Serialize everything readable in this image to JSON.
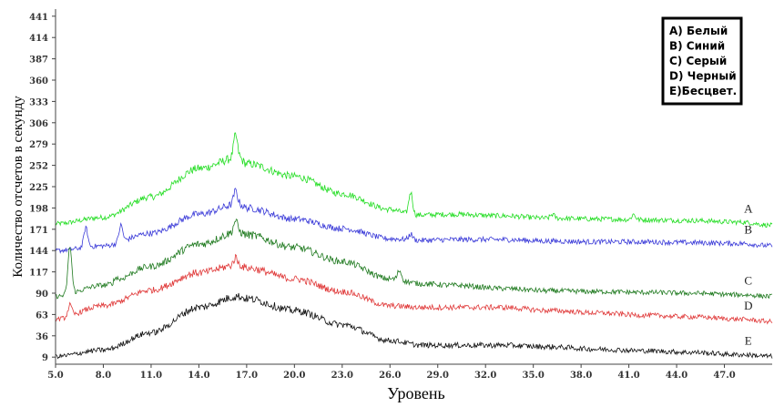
{
  "chart_data": {
    "type": "line",
    "xlabel": "Уровень",
    "ylabel": "Количество отсчетов в секунду",
    "xlim": [
      5.0,
      50.0
    ],
    "ylim": [
      0,
      450
    ],
    "x_ticks": [
      "5.0",
      "8.0",
      "11.0",
      "14.0",
      "17.0",
      "20.0",
      "23.0",
      "26.0",
      "29.0",
      "32.0",
      "35.0",
      "38.0",
      "41.0",
      "44.0",
      "47.0"
    ],
    "y_ticks": [
      "9",
      "36",
      "63",
      "90",
      "117",
      "144",
      "171",
      "198",
      "225",
      "252",
      "279",
      "306",
      "333",
      "360",
      "387",
      "414",
      "441"
    ],
    "legend": {
      "placement": "top-right",
      "entries": [
        "A) Белый",
        "B) Синий",
        "C) Серый",
        "D) Черный",
        "E)Бесцвет."
      ]
    },
    "series": [
      {
        "label": "A",
        "color": "#22dd22",
        "points": [
          [
            5,
            178
          ],
          [
            8,
            186
          ],
          [
            11,
            212
          ],
          [
            14,
            248
          ],
          [
            16.5,
            262
          ],
          [
            17,
            254
          ],
          [
            20,
            238
          ],
          [
            23,
            216
          ],
          [
            26,
            196
          ],
          [
            27.5,
            189
          ],
          [
            30,
            190
          ],
          [
            33,
            188
          ],
          [
            36,
            185
          ],
          [
            39,
            184
          ],
          [
            42,
            183
          ],
          [
            45,
            182
          ],
          [
            48,
            180
          ],
          [
            50,
            176
          ]
        ],
        "peaks": [
          [
            16.3,
            290
          ],
          [
            27.3,
            218
          ],
          [
            36.2,
            190
          ],
          [
            41.3,
            190
          ]
        ]
      },
      {
        "label": "B",
        "color": "#3a3ad8",
        "points": [
          [
            5,
            144
          ],
          [
            8,
            150
          ],
          [
            11,
            166
          ],
          [
            14,
            190
          ],
          [
            16.5,
            203
          ],
          [
            17,
            198
          ],
          [
            20,
            184
          ],
          [
            23,
            172
          ],
          [
            26,
            159
          ],
          [
            28,
            157
          ],
          [
            30,
            158
          ],
          [
            33,
            158
          ],
          [
            36,
            156
          ],
          [
            39,
            155
          ],
          [
            42,
            155
          ],
          [
            45,
            154
          ],
          [
            48,
            153
          ],
          [
            50,
            150
          ]
        ],
        "peaks": [
          [
            6.9,
            173
          ],
          [
            9.1,
            176
          ],
          [
            16.3,
            220
          ],
          [
            27.3,
            165
          ]
        ]
      },
      {
        "label": "C",
        "color": "#1f7a1f",
        "points": [
          [
            5,
            86
          ],
          [
            8,
            100
          ],
          [
            11,
            124
          ],
          [
            14,
            152
          ],
          [
            16.5,
            168
          ],
          [
            17,
            164
          ],
          [
            20,
            148
          ],
          [
            23,
            130
          ],
          [
            26,
            108
          ],
          [
            28,
            102
          ],
          [
            30,
            100
          ],
          [
            33,
            96
          ],
          [
            36,
            93
          ],
          [
            39,
            92
          ],
          [
            42,
            91
          ],
          [
            45,
            90
          ],
          [
            48,
            88
          ],
          [
            50,
            86
          ]
        ],
        "peaks": [
          [
            5.9,
            149
          ],
          [
            8.8,
            110
          ],
          [
            16.3,
            182
          ],
          [
            26.6,
            119
          ]
        ]
      },
      {
        "label": "D",
        "color": "#e03a3a",
        "points": [
          [
            5,
            57
          ],
          [
            8,
            74
          ],
          [
            11,
            94
          ],
          [
            14,
            116
          ],
          [
            16.5,
            126
          ],
          [
            17,
            122
          ],
          [
            20,
            108
          ],
          [
            23,
            92
          ],
          [
            26,
            74
          ],
          [
            28,
            72
          ],
          [
            30,
            72
          ],
          [
            33,
            72
          ],
          [
            36,
            68
          ],
          [
            39,
            65
          ],
          [
            42,
            62
          ],
          [
            45,
            60
          ],
          [
            48,
            57
          ],
          [
            50,
            54
          ]
        ],
        "peaks": [
          [
            5.9,
            75
          ],
          [
            16.3,
            135
          ]
        ]
      },
      {
        "label": "E",
        "color": "#111111",
        "points": [
          [
            5,
            10
          ],
          [
            8,
            18
          ],
          [
            11,
            40
          ],
          [
            14,
            72
          ],
          [
            16.5,
            86
          ],
          [
            17,
            83
          ],
          [
            20,
            68
          ],
          [
            23,
            50
          ],
          [
            26,
            30
          ],
          [
            28,
            24
          ],
          [
            30,
            24
          ],
          [
            33,
            24
          ],
          [
            36,
            22
          ],
          [
            39,
            19
          ],
          [
            42,
            17
          ],
          [
            45,
            15
          ],
          [
            48,
            12
          ],
          [
            50,
            10
          ]
        ],
        "peaks": []
      }
    ]
  }
}
